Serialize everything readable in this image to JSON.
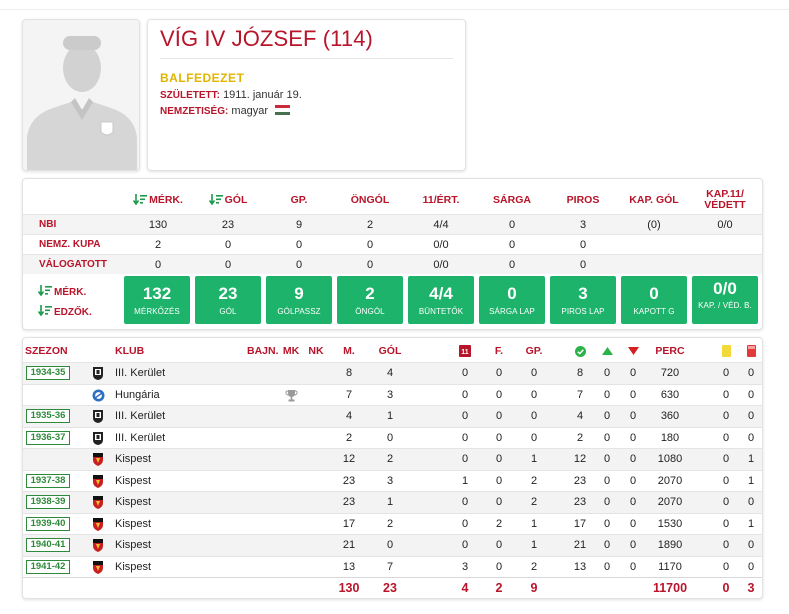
{
  "profile": {
    "name": "VÍG IV JÓZSEF (114)",
    "position": "BALFEDEZET",
    "birth_label": "SZÜLETETT:",
    "birth_value": "1911. január 19.",
    "nationality_label": "NEMZETISÉG:",
    "nationality_value": "magyar",
    "flag_colors": [
      "#ce2939",
      "#ffffff",
      "#477050"
    ]
  },
  "summary": {
    "headers": [
      "MÉRK.",
      "GÓL",
      "GP.",
      "ÖNGÓL",
      "11/ÉRT.",
      "SÁRGA",
      "PIROS",
      "KAP. GÓL",
      "KAP.11/ VÉDETT"
    ],
    "rows": [
      {
        "label": "NBI",
        "values": [
          "130",
          "23",
          "9",
          "2",
          "4/4",
          "0",
          "3",
          "(0)",
          "0/0"
        ]
      },
      {
        "label": "NEMZ. KUPA",
        "values": [
          "2",
          "0",
          "0",
          "0",
          "0/0",
          "0",
          "0",
          "",
          ""
        ]
      },
      {
        "label": "VÁLOGATOTT",
        "values": [
          "0",
          "0",
          "0",
          "0",
          "0/0",
          "0",
          "0",
          "",
          ""
        ]
      }
    ],
    "sort_labels": [
      "MÉRK.",
      "EDZŐK."
    ],
    "tiles": [
      {
        "value": "132",
        "label": "MÉRKŐZÉS"
      },
      {
        "value": "23",
        "label": "GÓL"
      },
      {
        "value": "9",
        "label": "GÓLPASSZ"
      },
      {
        "value": "2",
        "label": "ÖNGÓL"
      },
      {
        "value": "4/4",
        "label": "BÜNTETŐK"
      },
      {
        "value": "0",
        "label": "SÁRGA LAP"
      },
      {
        "value": "3",
        "label": "PIROS LAP"
      },
      {
        "value": "0",
        "label": "KAPOTT G"
      },
      {
        "value": "0/0",
        "label": "KAP. / VÉD. B."
      }
    ]
  },
  "seasons": {
    "headers": {
      "season": "SZEZON",
      "club": "KLUB",
      "bajn": "BAJN.",
      "mk": "MK",
      "nk": "NK",
      "m": "M.",
      "gol": "GÓL",
      "f": "F.",
      "gp": "GP.",
      "perc": "PERC"
    },
    "rows": [
      {
        "season": "1934-35",
        "club": "III. Kerület",
        "logo": "kerulet",
        "trophy": false,
        "vals": [
          "8",
          "4",
          "0",
          "0",
          "0",
          "8",
          "0",
          "0",
          "720",
          "0",
          "0"
        ]
      },
      {
        "season": "",
        "club": "Hungária",
        "logo": "hungaria",
        "trophy": true,
        "vals": [
          "7",
          "3",
          "0",
          "0",
          "0",
          "7",
          "0",
          "0",
          "630",
          "0",
          "0"
        ]
      },
      {
        "season": "1935-36",
        "club": "III. Kerület",
        "logo": "kerulet",
        "trophy": false,
        "vals": [
          "4",
          "1",
          "0",
          "0",
          "0",
          "4",
          "0",
          "0",
          "360",
          "0",
          "0"
        ]
      },
      {
        "season": "1936-37",
        "club": "III. Kerület",
        "logo": "kerulet",
        "trophy": false,
        "vals": [
          "2",
          "0",
          "0",
          "0",
          "0",
          "2",
          "0",
          "0",
          "180",
          "0",
          "0"
        ]
      },
      {
        "season": "",
        "club": "Kispest",
        "logo": "kispest",
        "trophy": false,
        "vals": [
          "12",
          "2",
          "0",
          "0",
          "1",
          "12",
          "0",
          "0",
          "1080",
          "0",
          "1"
        ]
      },
      {
        "season": "1937-38",
        "club": "Kispest",
        "logo": "kispest",
        "trophy": false,
        "vals": [
          "23",
          "3",
          "1",
          "0",
          "2",
          "23",
          "0",
          "0",
          "2070",
          "0",
          "1"
        ]
      },
      {
        "season": "1938-39",
        "club": "Kispest",
        "logo": "kispest",
        "trophy": false,
        "vals": [
          "23",
          "1",
          "0",
          "0",
          "2",
          "23",
          "0",
          "0",
          "2070",
          "0",
          "0"
        ]
      },
      {
        "season": "1939-40",
        "club": "Kispest",
        "logo": "kispest",
        "trophy": false,
        "vals": [
          "17",
          "2",
          "0",
          "2",
          "1",
          "17",
          "0",
          "0",
          "1530",
          "0",
          "1"
        ]
      },
      {
        "season": "1940-41",
        "club": "Kispest",
        "logo": "kispest",
        "trophy": false,
        "vals": [
          "21",
          "0",
          "0",
          "0",
          "1",
          "21",
          "0",
          "0",
          "1890",
          "0",
          "0"
        ]
      },
      {
        "season": "1941-42",
        "club": "Kispest",
        "logo": "kispest",
        "trophy": false,
        "vals": [
          "13",
          "7",
          "3",
          "0",
          "2",
          "13",
          "0",
          "0",
          "1170",
          "0",
          "0"
        ]
      }
    ],
    "totals": [
      "130",
      "23",
      "4",
      "2",
      "9",
      "11700",
      "0",
      "3"
    ]
  },
  "colors": {
    "accent": "#b8142a",
    "tile": "#1db36b",
    "season_border": "#2e8a3a",
    "position": "#e2b400"
  }
}
